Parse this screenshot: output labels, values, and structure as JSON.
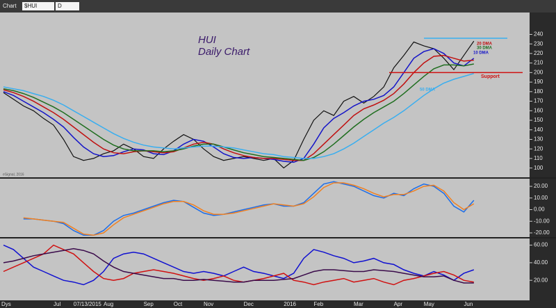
{
  "toolbar": {
    "menu": "Chart",
    "symbol": "$HUI",
    "interval": "D"
  },
  "footer": "Dys",
  "chart_data": [
    {
      "type": "line",
      "title": "HUI",
      "subtitle": "Daily Chart",
      "credit": "eSignal, 2016",
      "categories": [
        null,
        null,
        null,
        null,
        null,
        "Jul",
        null,
        "07/13/2015",
        null,
        null,
        "Aug",
        null,
        null,
        null,
        "Sep",
        null,
        null,
        "Oct",
        null,
        null,
        "Nov",
        null,
        null,
        null,
        "Dec",
        null,
        null,
        null,
        "2016",
        null,
        null,
        "Feb",
        null,
        null,
        null,
        "Mar",
        null,
        null,
        null,
        "Apr",
        null,
        null,
        "May",
        null,
        null,
        null,
        "Jun",
        null
      ],
      "series": [
        {
          "color": "#111111",
          "values": [
            179,
            172,
            165,
            160,
            152,
            145,
            130,
            112,
            108,
            110,
            115,
            118,
            125,
            120,
            112,
            110,
            120,
            128,
            135,
            130,
            120,
            112,
            108,
            110,
            112,
            110,
            108,
            110,
            100,
            108,
            130,
            150,
            160,
            155,
            170,
            175,
            168,
            175,
            185,
            205,
            218,
            232,
            228,
            225,
            215,
            203,
            218,
            233
          ]
        },
        {
          "name": "10 DMA",
          "color": "#1414c8",
          "values": [
            180,
            176,
            170,
            164,
            158,
            151,
            143,
            132,
            122,
            115,
            112,
            113,
            117,
            120,
            119,
            115,
            114,
            118,
            125,
            130,
            128,
            122,
            115,
            111,
            110,
            111,
            110,
            109,
            107,
            106,
            110,
            125,
            142,
            152,
            158,
            165,
            170,
            172,
            176,
            185,
            200,
            215,
            222,
            225,
            220,
            210,
            207,
            215
          ]
        },
        {
          "name": "20 DMA",
          "color": "#c01010",
          "values": [
            182,
            179,
            175,
            170,
            164,
            158,
            151,
            143,
            135,
            127,
            120,
            116,
            115,
            117,
            118,
            117,
            116,
            117,
            121,
            125,
            127,
            125,
            120,
            116,
            113,
            111,
            110,
            110,
            109,
            108,
            108,
            115,
            125,
            135,
            145,
            155,
            162,
            166,
            171,
            178,
            188,
            200,
            210,
            217,
            218,
            215,
            212,
            213
          ]
        },
        {
          "name": "30 DMA",
          "color": "#1f6e1f",
          "values": [
            183,
            181,
            178,
            174,
            169,
            164,
            158,
            151,
            144,
            137,
            130,
            124,
            120,
            118,
            118,
            118,
            117,
            118,
            120,
            123,
            125,
            125,
            122,
            119,
            116,
            114,
            112,
            111,
            110,
            109,
            108,
            111,
            117,
            125,
            134,
            143,
            151,
            158,
            164,
            170,
            178,
            187,
            196,
            204,
            208,
            208,
            207,
            209
          ]
        },
        {
          "name": "50 DMA",
          "color": "#38aef0",
          "values": [
            185,
            183,
            181,
            178,
            175,
            171,
            166,
            160,
            154,
            148,
            142,
            136,
            131,
            127,
            124,
            122,
            121,
            120,
            121,
            122,
            123,
            123,
            122,
            121,
            119,
            117,
            115,
            114,
            112,
            111,
            110,
            110,
            112,
            115,
            120,
            126,
            133,
            140,
            147,
            153,
            160,
            168,
            176,
            183,
            189,
            193,
            196,
            199
          ]
        }
      ],
      "support": {
        "label": "Support",
        "value": 200,
        "color": "#d01010"
      },
      "resistance": {
        "value": 236,
        "color": "#38aef0"
      },
      "ylim": [
        91,
        260
      ],
      "yticks": [
        100,
        110,
        120,
        130,
        140,
        150,
        160,
        170,
        180,
        190,
        200,
        210,
        220,
        230,
        240
      ]
    },
    {
      "type": "line",
      "series": [
        {
          "color": "#1e6ee8",
          "values": [
            null,
            null,
            -8,
            -8,
            -9,
            -10,
            -12,
            -18,
            -22,
            -22,
            -18,
            -10,
            -5,
            -3,
            0,
            3,
            6,
            8,
            7,
            2,
            -3,
            -5,
            -4,
            -2,
            0,
            2,
            4,
            5,
            3,
            3,
            6,
            14,
            22,
            24,
            22,
            20,
            16,
            12,
            10,
            14,
            12,
            18,
            22,
            20,
            14,
            3,
            -2,
            8
          ]
        },
        {
          "color": "#f08020",
          "values": [
            null,
            null,
            -7,
            -8,
            -9,
            -10,
            -11,
            -16,
            -21,
            -22,
            -20,
            -13,
            -7,
            -4,
            -1,
            2,
            5,
            7,
            7,
            4,
            -1,
            -4,
            -4,
            -3,
            -1,
            1,
            3,
            5,
            4,
            3,
            5,
            11,
            19,
            23,
            23,
            21,
            18,
            14,
            11,
            13,
            13,
            16,
            20,
            21,
            16,
            6,
            0,
            5
          ]
        }
      ],
      "ylim": [
        -23,
        26
      ],
      "yticks": [
        {
          "value": -20,
          "label": "-20.00"
        },
        {
          "value": -10,
          "label": "-10.00"
        },
        {
          "value": 0,
          "label": "0.00"
        },
        {
          "value": 10,
          "label": "10.00"
        },
        {
          "value": 20,
          "label": "20.00"
        }
      ]
    },
    {
      "type": "line",
      "series": [
        {
          "color": "#1010d0",
          "values": [
            60,
            55,
            45,
            35,
            30,
            25,
            20,
            18,
            15,
            20,
            30,
            45,
            50,
            52,
            50,
            45,
            40,
            35,
            30,
            28,
            30,
            28,
            25,
            30,
            35,
            30,
            28,
            25,
            22,
            28,
            45,
            55,
            52,
            48,
            45,
            40,
            42,
            45,
            40,
            38,
            32,
            28,
            25,
            30,
            26,
            20,
            28,
            32
          ]
        },
        {
          "color": "#d01010",
          "values": [
            30,
            35,
            40,
            45,
            50,
            60,
            55,
            50,
            40,
            30,
            22,
            20,
            22,
            28,
            30,
            32,
            30,
            28,
            25,
            22,
            20,
            22,
            25,
            20,
            18,
            20,
            22,
            25,
            28,
            20,
            18,
            15,
            18,
            20,
            22,
            18,
            20,
            22,
            18,
            15,
            20,
            22,
            25,
            28,
            30,
            26,
            20,
            18
          ]
        },
        {
          "color": "#3a0a4a",
          "values": [
            40,
            42,
            45,
            48,
            50,
            52,
            54,
            56,
            54,
            50,
            42,
            35,
            30,
            28,
            26,
            24,
            22,
            22,
            20,
            20,
            21,
            20,
            19,
            18,
            18,
            20,
            20,
            20,
            21,
            22,
            26,
            30,
            32,
            32,
            31,
            30,
            30,
            32,
            31,
            30,
            28,
            26,
            24,
            24,
            25,
            20,
            17,
            17
          ]
        }
      ],
      "ylim": [
        -2,
        66
      ],
      "yticks": [
        {
          "value": 20,
          "label": "20.00"
        },
        {
          "value": 40,
          "label": "40.00"
        },
        {
          "value": 60,
          "label": "60.00"
        }
      ]
    }
  ]
}
